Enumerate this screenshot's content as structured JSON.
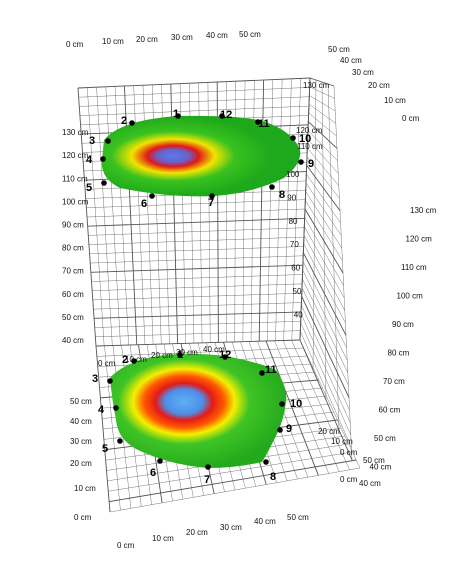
{
  "figure": {
    "top_axis_labels": [
      "0 cm",
      "10 cm",
      "20 cm",
      "30 cm",
      "40 cm",
      "50 cm"
    ],
    "left_height_labels": [
      "40 cm",
      "50 cm",
      "60 cm",
      "70 cm",
      "80 cm",
      "90 cm",
      "100 cm",
      "110 cm",
      "120 cm",
      "130 cm"
    ],
    "right_depth_labels": [
      "50 cm",
      "40 cm",
      "30 cm",
      "20 cm",
      "10 cm",
      "0 cm"
    ],
    "right_panel_top_labels": [
      "130 cm",
      "120 cm",
      "110 cm"
    ],
    "right_panel_side_labels": [
      "130 cm",
      "120 cm",
      "110 cm",
      "100 cm",
      "90 cm",
      "80 cm",
      "70 cm",
      "60 cm",
      "50 cm",
      "40 cm"
    ],
    "right_panel_inner_labels": [
      "100",
      "90",
      "80",
      "70",
      "60",
      "50",
      "40"
    ],
    "bottom_left_labels": [
      "50 cm",
      "40 cm",
      "30 cm",
      "20 cm",
      "10 cm",
      "0 cm"
    ],
    "bottom_top_labels": [
      "0 cm",
      "10 cm",
      "20 cm",
      "30 cm",
      "40 cm"
    ],
    "bottom_front_labels": [
      "0 cm",
      "10 cm",
      "20 cm",
      "30 cm",
      "40 cm",
      "50 cm"
    ],
    "bottom_right_labels": [
      "20 cm",
      "10 cm",
      "0 cm"
    ],
    "bottom_far_right_labels": [
      "50 cm",
      "40 cm"
    ],
    "electrode_numbers": [
      "1",
      "2",
      "3",
      "4",
      "5",
      "6",
      "7",
      "8",
      "9",
      "10",
      "11",
      "12"
    ],
    "colors": {
      "grid": "#555555",
      "map_green": "#2fbf1f",
      "map_yellow": "#f4f400",
      "map_red": "#ee1c12",
      "map_blue": "#5aa2f0"
    }
  }
}
